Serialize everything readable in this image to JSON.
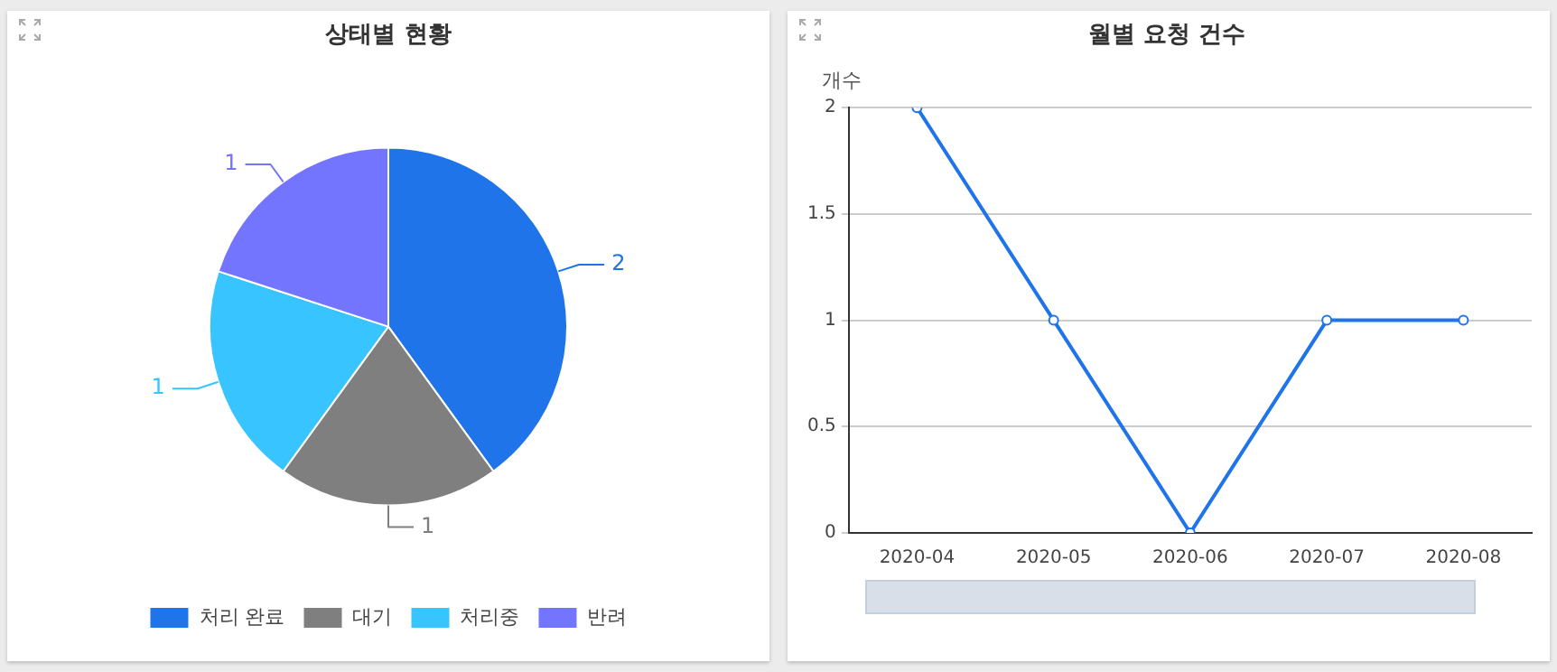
{
  "chart_data": [
    {
      "type": "pie",
      "title": "상태별 현황",
      "categories": [
        "처리 완료",
        "대기",
        "처리중",
        "반려"
      ],
      "values": [
        2,
        1,
        1,
        1
      ],
      "colors": [
        "#1e74e8",
        "#7f7f7f",
        "#38c4ff",
        "#7375ff"
      ],
      "data_labels": true,
      "legend": "bottom"
    },
    {
      "type": "line",
      "title": "월별 요청 건수",
      "ylabel": "개수",
      "categories": [
        "2020-04",
        "2020-05",
        "2020-06",
        "2020-07",
        "2020-08"
      ],
      "series": [
        {
          "color": "#1e74e8",
          "values": [
            2,
            1,
            0,
            1,
            1
          ]
        }
      ],
      "ylim": [
        0,
        2
      ],
      "yticks": [
        0,
        0.5,
        1,
        1.5,
        2
      ],
      "grid": "y",
      "marker": "circle",
      "line_style": "solid",
      "legend": false
    }
  ]
}
